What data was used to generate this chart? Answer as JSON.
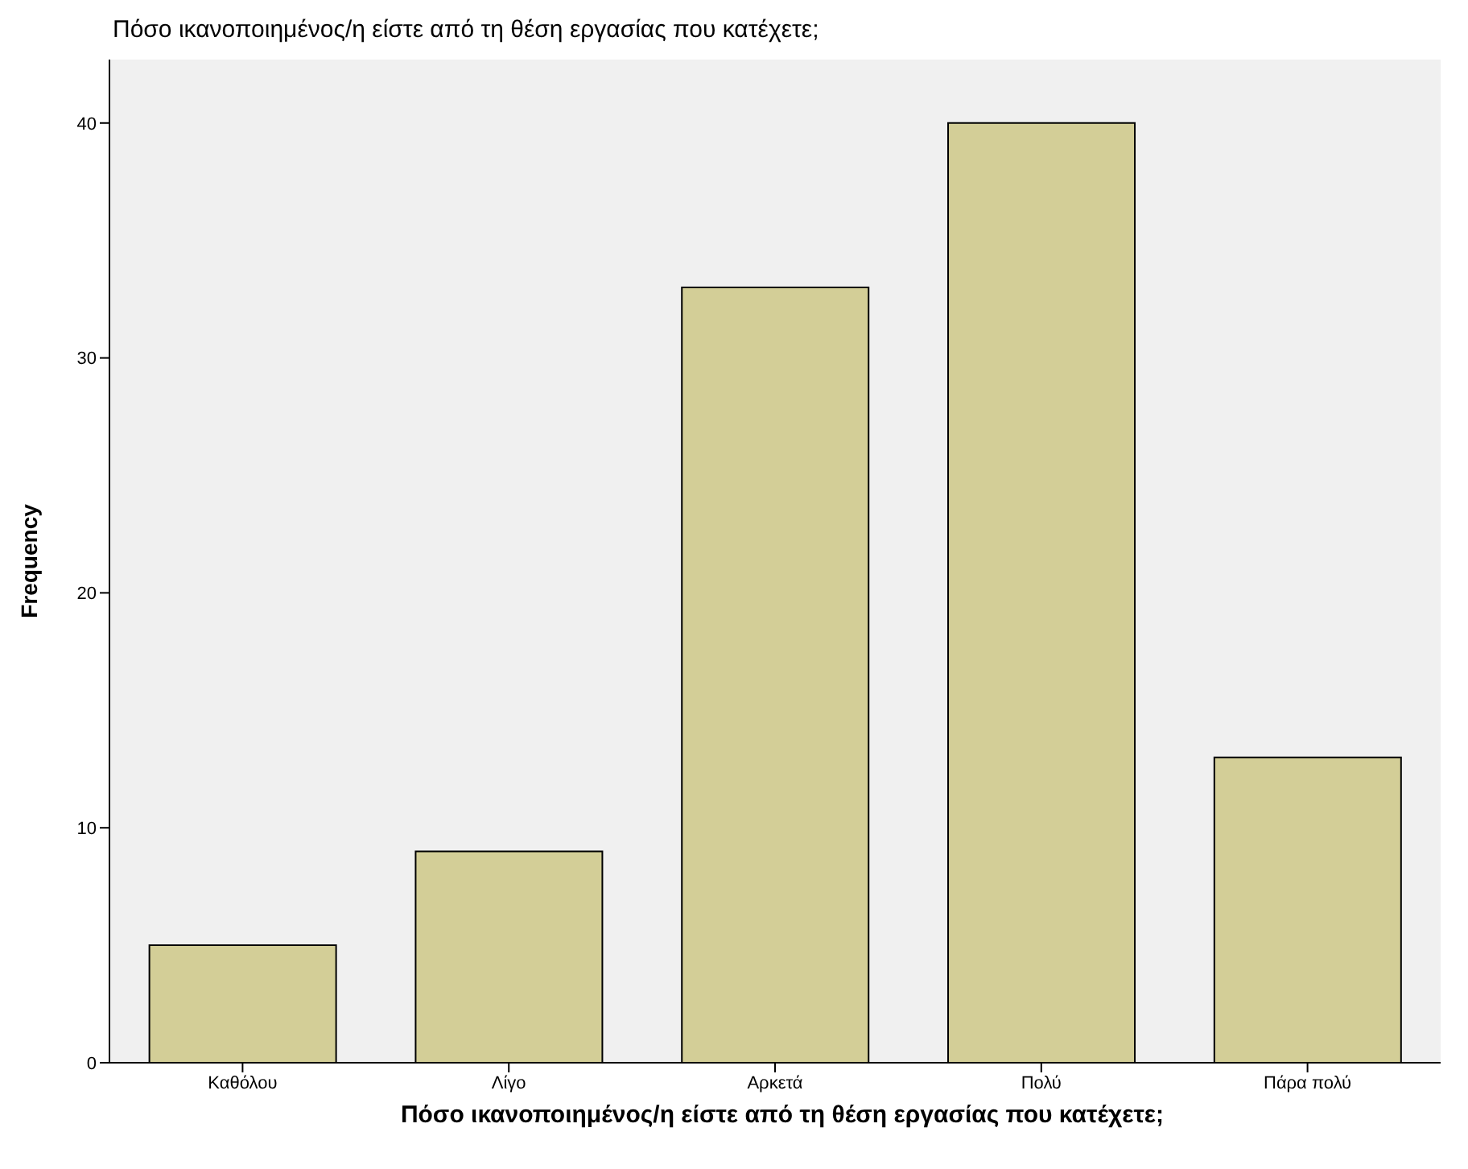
{
  "chart_data": {
    "type": "bar",
    "title": "Πόσο ικανοποιημένος/η είστε από τη θέση εργασίας που κατέχετε;",
    "xlabel": "Πόσο ικανοποιημένος/η είστε από τη θέση εργασίας που κατέχετε;",
    "ylabel": "Frequency",
    "categories": [
      "Καθόλου",
      "Λίγο",
      "Αρκετά",
      "Πολύ",
      "Πάρα πολύ"
    ],
    "values": [
      5,
      9,
      33,
      40,
      13
    ],
    "color": "#d3ce97",
    "ylim": [
      0,
      42.7
    ],
    "yticks": [
      0,
      10,
      20,
      30,
      40
    ],
    "grid": false,
    "legend": false
  }
}
